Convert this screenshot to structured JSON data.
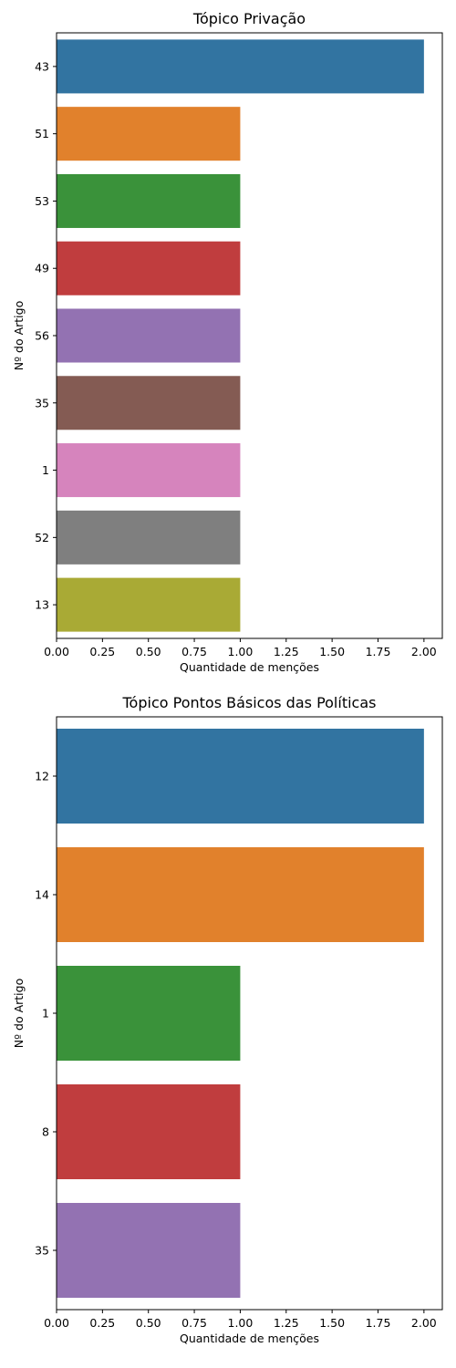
{
  "chart_data": [
    {
      "type": "bar",
      "orientation": "horizontal",
      "title": "Tópico Privação",
      "xlabel": "Quantidade de menções",
      "ylabel": "Nº do Artigo",
      "categories": [
        "43",
        "51",
        "53",
        "49",
        "56",
        "35",
        "1",
        "52",
        "13"
      ],
      "values": [
        2,
        1,
        1,
        1,
        1,
        1,
        1,
        1,
        1
      ],
      "colors": [
        "#3274a1",
        "#e1812c",
        "#3a923a",
        "#c03d3e",
        "#9372b2",
        "#845b53",
        "#d684bd",
        "#7f7f7f",
        "#a9aa35"
      ],
      "xlim": [
        0,
        2.1
      ],
      "xticks": [
        "0.00",
        "0.25",
        "0.50",
        "0.75",
        "1.00",
        "1.25",
        "1.50",
        "1.75",
        "2.00"
      ],
      "grid": false,
      "legend": "none"
    },
    {
      "type": "bar",
      "orientation": "horizontal",
      "title": "Tópico Pontos Básicos das Políticas",
      "xlabel": "Quantidade de menções",
      "ylabel": "Nº do Artigo",
      "categories": [
        "12",
        "14",
        "1",
        "8",
        "35"
      ],
      "values": [
        2,
        2,
        1,
        1,
        1
      ],
      "colors": [
        "#3274a1",
        "#e1812c",
        "#3a923a",
        "#c03d3e",
        "#9372b2"
      ],
      "xlim": [
        0,
        2.1
      ],
      "xticks": [
        "0.00",
        "0.25",
        "0.50",
        "0.75",
        "1.00",
        "1.25",
        "1.50",
        "1.75",
        "2.00"
      ],
      "grid": false,
      "legend": "none"
    }
  ]
}
